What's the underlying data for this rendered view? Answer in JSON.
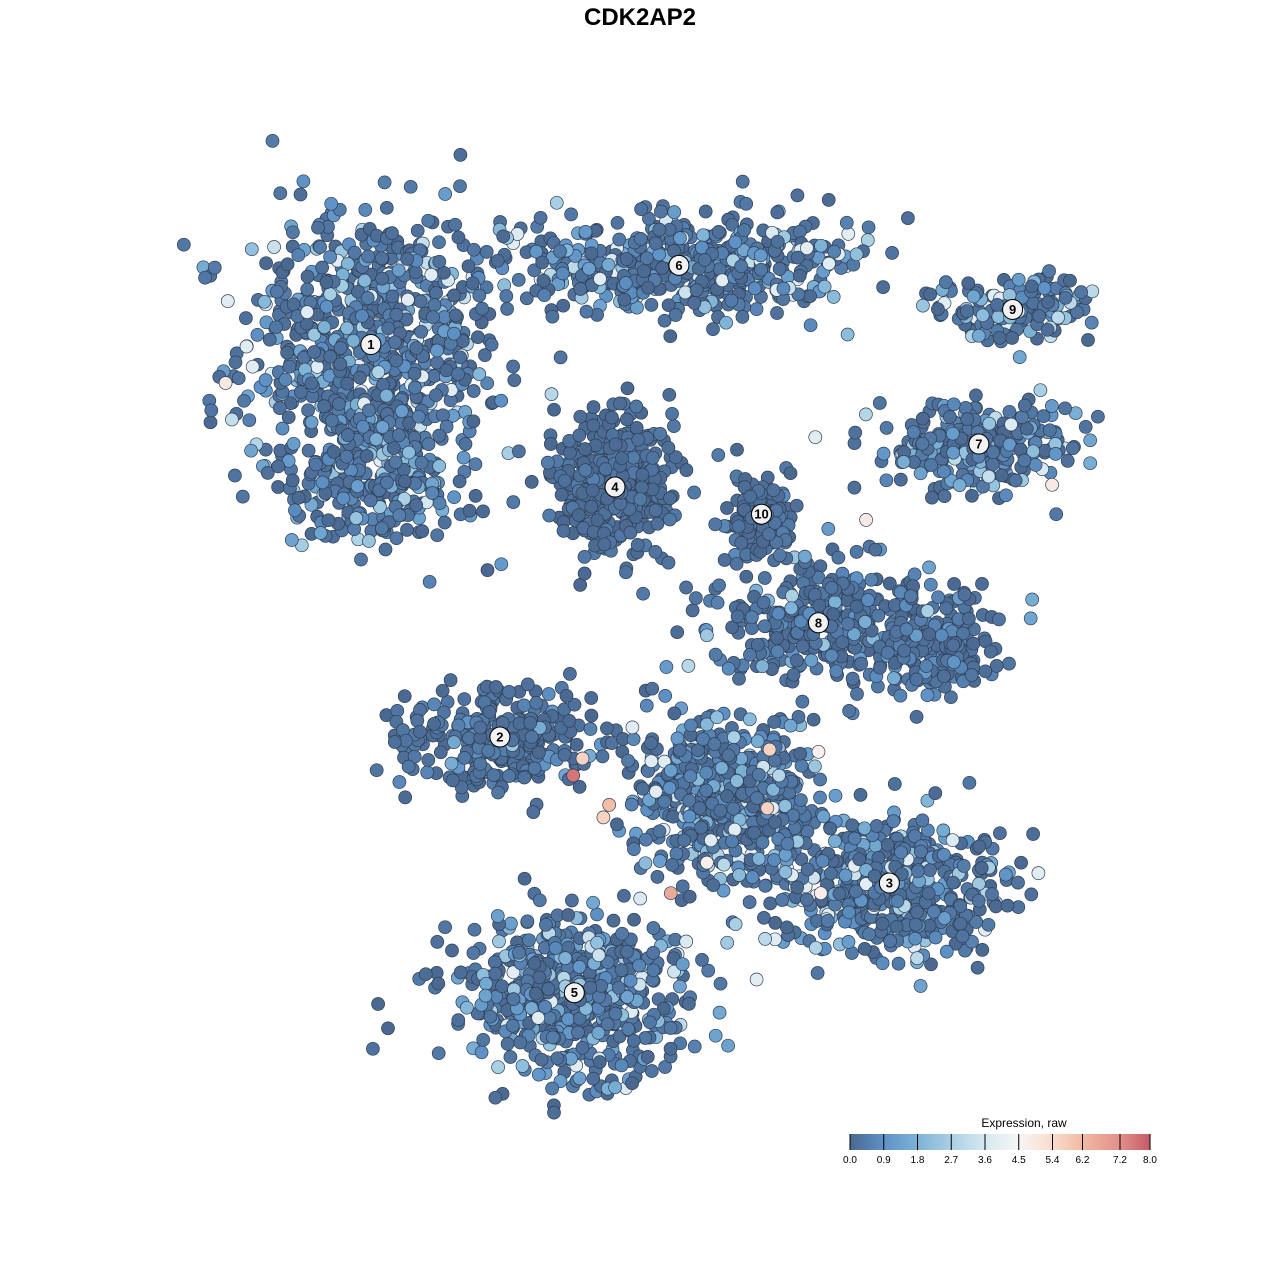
{
  "chart_data": {
    "type": "scatter",
    "title": "CDK2AP2",
    "xlabel": "",
    "ylabel": "",
    "xlim": [
      -40,
      40
    ],
    "ylim": [
      -40,
      40
    ],
    "grid": false,
    "axes_visible": false,
    "legend": {
      "title": "Expression, raw",
      "placement": "bottom-right",
      "ticks": [
        "0.0",
        "0.9",
        "1.8",
        "2.7",
        "3.6",
        "4.5",
        "5.4",
        "6.2",
        "7.2",
        "8.0"
      ],
      "range": [
        0,
        8.0
      ],
      "colormap": [
        {
          "value": 0.0,
          "color": "#4a6890"
        },
        {
          "value": 0.9,
          "color": "#5e92c6"
        },
        {
          "value": 1.8,
          "color": "#7db2d6"
        },
        {
          "value": 2.7,
          "color": "#aad0e4"
        },
        {
          "value": 3.6,
          "color": "#d6e8f1"
        },
        {
          "value": 4.5,
          "color": "#f6f6f6"
        },
        {
          "value": 5.4,
          "color": "#fbdccb"
        },
        {
          "value": 6.2,
          "color": "#f2b9a2"
        },
        {
          "value": 7.2,
          "color": "#e1908a"
        },
        {
          "value": 8.0,
          "color": "#c65a68"
        }
      ]
    },
    "clusters": [
      {
        "label": "1",
        "center": [
          -25.3,
          25.9
        ],
        "spread": [
          7.0,
          7.5
        ],
        "approx_cells": 750,
        "mean_expression": 1.5
      },
      {
        "label": "2",
        "center": [
          -14.2,
          -8.8
        ],
        "spread": [
          5.0,
          2.8
        ],
        "approx_cells": 320,
        "mean_expression": 0.4
      },
      {
        "label": "3",
        "center": [
          19.3,
          -21.7
        ],
        "spread": [
          6.5,
          3.8
        ],
        "approx_cells": 520,
        "mean_expression": 1.6
      },
      {
        "label": "4",
        "center": [
          -4.3,
          13.3
        ],
        "spread": [
          3.2,
          3.6
        ],
        "approx_cells": 450,
        "mean_expression": 0.15
      },
      {
        "label": "5",
        "center": [
          -7.8,
          -31.4
        ],
        "spread": [
          6.0,
          4.2
        ],
        "approx_cells": 620,
        "mean_expression": 1.2
      },
      {
        "label": "6",
        "center": [
          1.2,
          32.9
        ],
        "spread": [
          9.5,
          2.8
        ],
        "approx_cells": 520,
        "mean_expression": 1.8
      },
      {
        "label": "7",
        "center": [
          27.0,
          17.1
        ],
        "spread": [
          5.5,
          2.4
        ],
        "approx_cells": 260,
        "mean_expression": 1.5
      },
      {
        "label": "8",
        "center": [
          13.2,
          1.3
        ],
        "spread": [
          5.5,
          3.5
        ],
        "approx_cells": 320,
        "mean_expression": 0.6
      },
      {
        "label": "9",
        "center": [
          29.9,
          29.0
        ],
        "spread": [
          4.2,
          1.8
        ],
        "approx_cells": 150,
        "mean_expression": 1.8
      },
      {
        "label": "10",
        "center": [
          8.3,
          10.9
        ],
        "spread": [
          1.8,
          2.8
        ],
        "approx_cells": 120,
        "mean_expression": 0.2
      }
    ],
    "extra_regions": [
      {
        "cluster": "3",
        "center": [
          5.0,
          -14.0
        ],
        "spread": [
          5.0,
          4.5
        ],
        "approx_cells": 550,
        "mean_expression": 1.7
      },
      {
        "cluster": "8",
        "center": [
          24.0,
          -0.5
        ],
        "spread": [
          3.0,
          2.5
        ],
        "approx_cells": 180,
        "mean_expression": 0.6
      },
      {
        "cluster": "1",
        "center": [
          -25.0,
          14.0
        ],
        "spread": [
          5.0,
          4.0
        ],
        "approx_cells": 250,
        "mean_expression": 1.4
      }
    ],
    "high_expression_points": [
      {
        "x": -7.9,
        "y": -12.2,
        "value": 7.6
      },
      {
        "x": -7.1,
        "y": -10.7,
        "value": 5.6
      },
      {
        "x": -4.8,
        "y": -14.8,
        "value": 6.1
      },
      {
        "x": -5.3,
        "y": -15.9,
        "value": 5.6
      },
      {
        "x": 0.5,
        "y": -22.6,
        "value": 6.6
      },
      {
        "x": 9.0,
        "y": -9.9,
        "value": 5.6
      },
      {
        "x": 8.8,
        "y": -15.1,
        "value": 5.6
      },
      {
        "x": -37.8,
        "y": 22.5,
        "value": 4.9
      },
      {
        "x": 33.3,
        "y": 13.5,
        "value": 4.9
      },
      {
        "x": 17.3,
        "y": 10.4,
        "value": 4.9
      },
      {
        "x": 13.4,
        "y": -22.6,
        "value": 4.8
      },
      {
        "x": 13.2,
        "y": -10.1,
        "value": 4.7
      },
      {
        "x": 3.6,
        "y": -19.9,
        "value": 4.7
      }
    ]
  }
}
